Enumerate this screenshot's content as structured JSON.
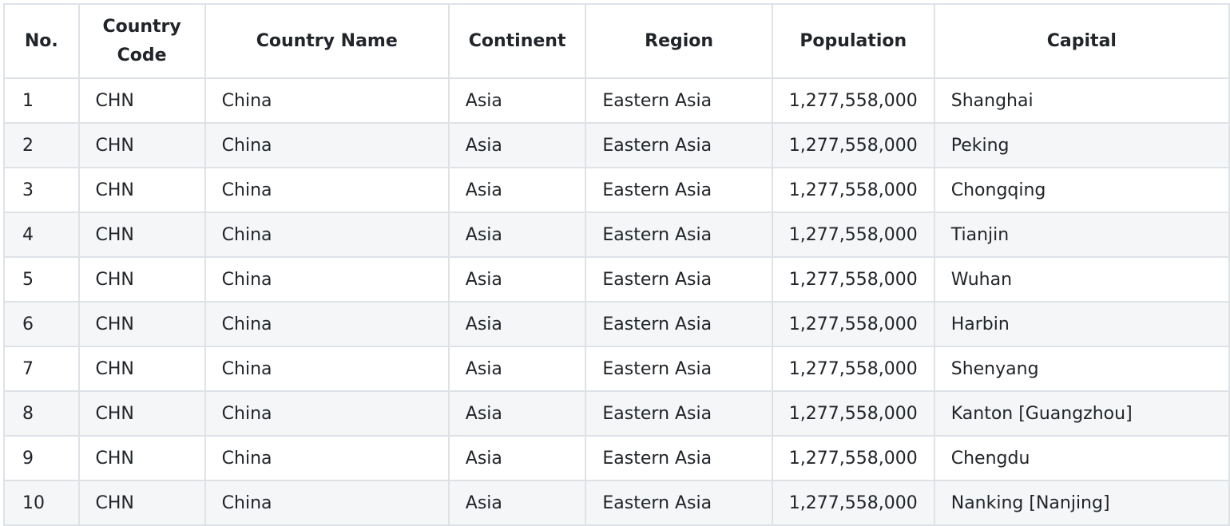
{
  "table": {
    "headers": [
      "No.",
      "Country\nCode",
      "Country Name",
      "Continent",
      "Region",
      "Population",
      "Capital"
    ],
    "header_code_line1": "Country",
    "header_code_line2": "Code",
    "rows": [
      [
        "1",
        "CHN",
        "China",
        "Asia",
        "Eastern Asia",
        "1,277,558,000",
        "Shanghai"
      ],
      [
        "2",
        "CHN",
        "China",
        "Asia",
        "Eastern Asia",
        "1,277,558,000",
        "Peking"
      ],
      [
        "3",
        "CHN",
        "China",
        "Asia",
        "Eastern Asia",
        "1,277,558,000",
        "Chongqing"
      ],
      [
        "4",
        "CHN",
        "China",
        "Asia",
        "Eastern Asia",
        "1,277,558,000",
        "Tianjin"
      ],
      [
        "5",
        "CHN",
        "China",
        "Asia",
        "Eastern Asia",
        "1,277,558,000",
        "Wuhan"
      ],
      [
        "6",
        "CHN",
        "China",
        "Asia",
        "Eastern Asia",
        "1,277,558,000",
        "Harbin"
      ],
      [
        "7",
        "CHN",
        "China",
        "Asia",
        "Eastern Asia",
        "1,277,558,000",
        "Shenyang"
      ],
      [
        "8",
        "CHN",
        "China",
        "Asia",
        "Eastern Asia",
        "1,277,558,000",
        "Kanton [Guangzhou]"
      ],
      [
        "9",
        "CHN",
        "China",
        "Asia",
        "Eastern Asia",
        "1,277,558,000",
        "Chengdu"
      ],
      [
        "10",
        "CHN",
        "China",
        "Asia",
        "Eastern Asia",
        "1,277,558,000",
        "Nanking [Nanjing]"
      ]
    ]
  },
  "colors": {
    "border": "#dee2e6",
    "stripe": "#f5f6f8",
    "text": "#212529"
  }
}
